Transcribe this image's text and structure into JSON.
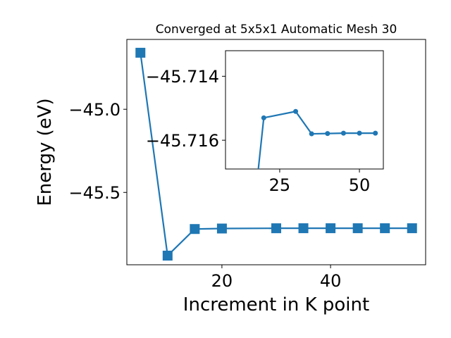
{
  "chart_data": [
    {
      "type": "line",
      "title": "Converged at 5x5x1 Automatic Mesh 30",
      "xlabel": "Increment in K point",
      "ylabel": "Energy (eV)",
      "x_ticks": [
        20,
        40
      ],
      "y_ticks": [
        -45.0,
        -45.5
      ],
      "x_tick_labels": [
        "20",
        "40"
      ],
      "y_tick_labels": [
        "−45.0",
        "−45.5"
      ],
      "xlim": [
        2.5,
        57.5
      ],
      "ylim": [
        -45.935,
        -44.58
      ],
      "series": [
        {
          "marker": "square",
          "color": "#1f77b4",
          "x": [
            5,
            10,
            15,
            20,
            30,
            35,
            40,
            45,
            50,
            55
          ],
          "y": [
            -44.66,
            -45.88,
            -45.72,
            -45.717,
            -45.7155,
            -45.7153,
            -45.7153,
            -45.7153,
            -45.7153,
            -45.7153
          ]
        }
      ],
      "grid": false
    },
    {
      "type": "line",
      "role": "inset",
      "x_ticks": [
        25,
        50
      ],
      "y_ticks": [
        -45.716,
        -45.714
      ],
      "x_tick_labels": [
        "25",
        "50"
      ],
      "y_tick_labels": [
        "−45.716",
        "−45.714"
      ],
      "xlim": [
        8,
        57.5
      ],
      "ylim": [
        -45.7169,
        -45.7132
      ],
      "series": [
        {
          "marker": "circle",
          "color": "#1f77b4",
          "x": [
            15,
            20,
            30,
            35,
            40,
            45,
            50,
            55
          ],
          "y": [
            -45.72,
            -45.7153,
            -45.7151,
            -45.7158,
            -45.71579,
            -45.71578,
            -45.71578,
            -45.71578
          ]
        }
      ],
      "grid": false
    }
  ]
}
